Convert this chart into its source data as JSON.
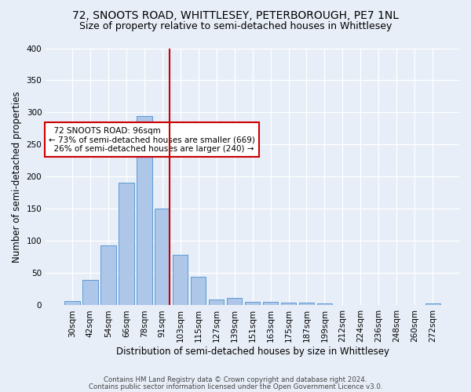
{
  "title": "72, SNOOTS ROAD, WHITTLESEY, PETERBOROUGH, PE7 1NL",
  "subtitle": "Size of property relative to semi-detached houses in Whittlesey",
  "xlabel": "Distribution of semi-detached houses by size in Whittlesey",
  "ylabel": "Number of semi-detached properties",
  "footer_line1": "Contains HM Land Registry data © Crown copyright and database right 2024.",
  "footer_line2": "Contains public sector information licensed under the Open Government Licence v3.0.",
  "categories": [
    "30sqm",
    "42sqm",
    "54sqm",
    "66sqm",
    "78sqm",
    "91sqm",
    "103sqm",
    "115sqm",
    "127sqm",
    "139sqm",
    "151sqm",
    "163sqm",
    "175sqm",
    "187sqm",
    "199sqm",
    "212sqm",
    "224sqm",
    "236sqm",
    "248sqm",
    "260sqm",
    "272sqm"
  ],
  "values": [
    7,
    39,
    93,
    191,
    295,
    151,
    79,
    44,
    9,
    11,
    5,
    6,
    4,
    4,
    3,
    0,
    0,
    0,
    0,
    0,
    3
  ],
  "bar_color": "#aec6e8",
  "bar_edge_color": "#5b9bd5",
  "vline_idx": 5,
  "property_label": "72 SNOOTS ROAD: 96sqm",
  "pct_smaller": 73,
  "count_smaller": 669,
  "pct_larger": 26,
  "count_larger": 240,
  "vline_color": "#cc0000",
  "annotation_box_edge_color": "#cc0000",
  "ylim": [
    0,
    400
  ],
  "yticks": [
    0,
    50,
    100,
    150,
    200,
    250,
    300,
    350,
    400
  ],
  "bg_color": "#e8eef8",
  "plot_bg_color": "#e8eef8",
  "grid_color": "#ffffff",
  "title_fontsize": 10,
  "subtitle_fontsize": 9,
  "tick_fontsize": 7.5,
  "ylabel_fontsize": 8.5,
  "xlabel_fontsize": 8.5,
  "ann_fontsize": 7.5
}
